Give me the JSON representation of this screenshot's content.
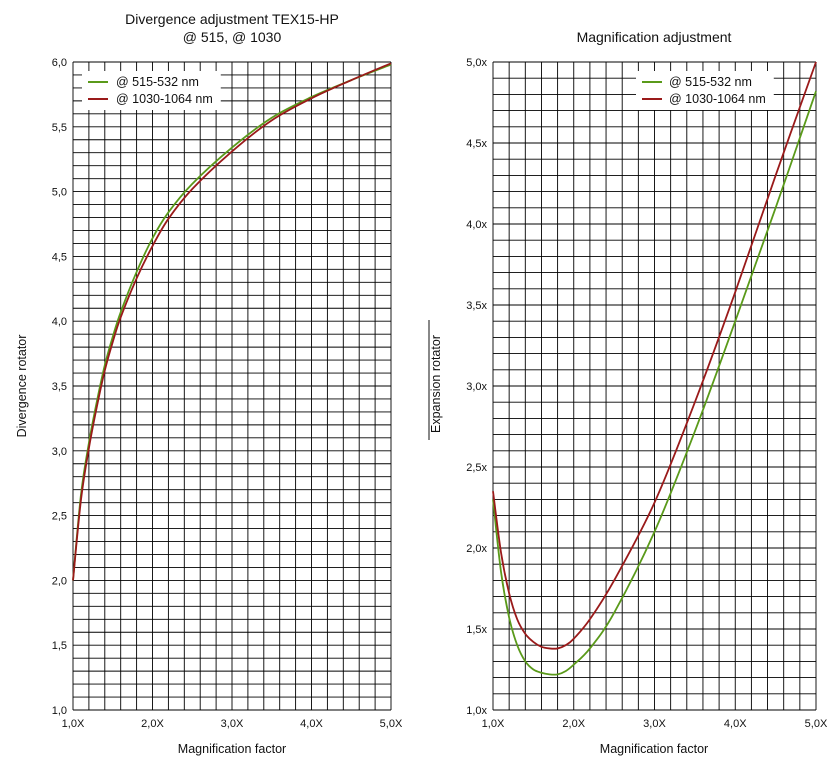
{
  "chart_data": [
    {
      "type": "line",
      "title": "Divergence adjustment TEX15-HP",
      "subtitle": "@ 515, @ 1030",
      "xlabel": "Magnification factor",
      "ylabel": "Divergence rotator",
      "xlim": [
        1.0,
        5.0
      ],
      "ylim": [
        1.0,
        6.0
      ],
      "x_ticks": [
        "1,0X",
        "2,0X",
        "3,0X",
        "4,0X",
        "5,0X"
      ],
      "y_ticks": [
        "1,0",
        "1,5",
        "2,0",
        "2,5",
        "3,0",
        "3,5",
        "4,0",
        "4,5",
        "5,0",
        "5,5",
        "6,0"
      ],
      "grid": true,
      "legend_position": "top-left",
      "series": [
        {
          "name": "@ 515-532 nm",
          "color": "#5a9a1a",
          "x": [
            1.0,
            1.1,
            1.2,
            1.3,
            1.4,
            1.5,
            1.6,
            1.8,
            2.0,
            2.2,
            2.5,
            3.0,
            3.5,
            4.0,
            4.5,
            5.0
          ],
          "y": [
            2.0,
            2.66,
            3.06,
            3.38,
            3.66,
            3.88,
            4.07,
            4.38,
            4.64,
            4.84,
            5.06,
            5.34,
            5.57,
            5.73,
            5.86,
            5.98
          ]
        },
        {
          "name": "@ 1030-1064 nm",
          "color": "#9a1a1a",
          "x": [
            1.0,
            1.1,
            1.2,
            1.3,
            1.4,
            1.5,
            1.6,
            1.8,
            2.0,
            2.2,
            2.5,
            3.0,
            3.5,
            4.0,
            4.5,
            5.0
          ],
          "y": [
            2.0,
            2.62,
            3.02,
            3.34,
            3.62,
            3.84,
            4.03,
            4.33,
            4.58,
            4.79,
            5.02,
            5.31,
            5.55,
            5.72,
            5.86,
            5.99
          ]
        }
      ]
    },
    {
      "type": "line",
      "title": "Magnification adjustment",
      "xlabel": "Magnification factor",
      "ylabel": "Expansion rotator",
      "xlim": [
        1.0,
        5.0
      ],
      "ylim": [
        1.0,
        5.0
      ],
      "x_ticks": [
        "1,0X",
        "2,0X",
        "3,0X",
        "4,0X",
        "5,0X"
      ],
      "y_ticks": [
        "1,0x",
        "1,5x",
        "2,0x",
        "2,5x",
        "3,0x",
        "3,5x",
        "4,0x",
        "4,5x",
        "5,0x"
      ],
      "grid": true,
      "legend_position": "top-right",
      "series": [
        {
          "name": "@ 515-532 nm",
          "color": "#5a9a1a",
          "x": [
            1.0,
            1.1,
            1.2,
            1.3,
            1.4,
            1.5,
            1.6,
            1.7,
            1.8,
            1.9,
            2.0,
            2.2,
            2.5,
            3.0,
            3.5,
            4.0,
            4.5,
            5.0
          ],
          "y": [
            2.3,
            1.85,
            1.57,
            1.4,
            1.3,
            1.25,
            1.23,
            1.22,
            1.22,
            1.24,
            1.28,
            1.38,
            1.6,
            2.1,
            2.72,
            3.4,
            4.1,
            4.82
          ]
        },
        {
          "name": "@ 1030-1064 nm",
          "color": "#9a1a1a",
          "x": [
            1.0,
            1.1,
            1.2,
            1.3,
            1.4,
            1.5,
            1.6,
            1.7,
            1.8,
            1.9,
            2.0,
            2.2,
            2.5,
            3.0,
            3.5,
            4.0,
            4.5,
            5.0
          ],
          "y": [
            2.35,
            1.97,
            1.72,
            1.56,
            1.47,
            1.42,
            1.39,
            1.38,
            1.38,
            1.4,
            1.44,
            1.56,
            1.8,
            2.28,
            2.9,
            3.58,
            4.3,
            5.0
          ]
        }
      ]
    }
  ]
}
